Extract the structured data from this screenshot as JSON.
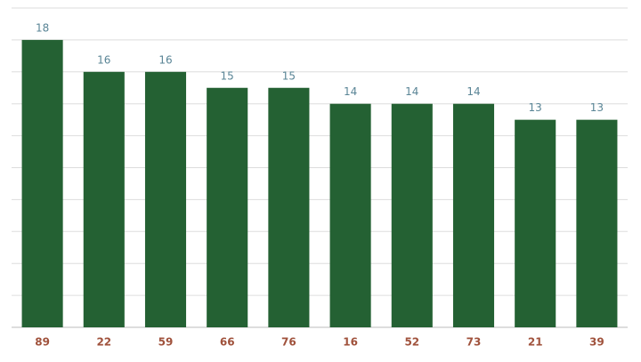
{
  "chart_data": {
    "type": "bar",
    "categories": [
      "89",
      "22",
      "59",
      "66",
      "76",
      "16",
      "52",
      "73",
      "21",
      "39"
    ],
    "values": [
      18,
      16,
      16,
      15,
      15,
      14,
      14,
      14,
      13,
      13
    ],
    "color": "#246133",
    "ylim": [
      0,
      20
    ],
    "yticks": [
      0,
      2,
      4,
      6,
      8,
      10,
      12,
      14,
      16,
      18,
      20
    ],
    "grid": true
  }
}
